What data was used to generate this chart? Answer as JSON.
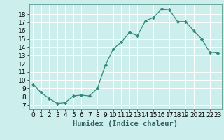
{
  "x": [
    0,
    1,
    2,
    3,
    4,
    5,
    6,
    7,
    8,
    9,
    10,
    11,
    12,
    13,
    14,
    15,
    16,
    17,
    18,
    19,
    20,
    21,
    22,
    23
  ],
  "y": [
    9.5,
    8.5,
    7.8,
    7.2,
    7.3,
    8.1,
    8.2,
    8.1,
    9.0,
    11.8,
    13.8,
    14.6,
    15.8,
    15.4,
    17.2,
    17.6,
    18.6,
    18.5,
    17.1,
    17.1,
    16.0,
    15.0,
    13.4,
    13.3
  ],
  "line_color": "#2e8b7a",
  "marker": "D",
  "marker_size": 2.2,
  "bg_color": "#cceeed",
  "grid_color": "#ffffff",
  "xlabel": "Humidex (Indice chaleur)",
  "xlim": [
    -0.5,
    23.5
  ],
  "ylim": [
    6.5,
    19.2
  ],
  "yticks": [
    7,
    8,
    9,
    10,
    11,
    12,
    13,
    14,
    15,
    16,
    17,
    18
  ],
  "xticks": [
    0,
    1,
    2,
    3,
    4,
    5,
    6,
    7,
    8,
    9,
    10,
    11,
    12,
    13,
    14,
    15,
    16,
    17,
    18,
    19,
    20,
    21,
    22,
    23
  ],
  "label_fontsize": 7.5,
  "tick_fontsize": 6.5
}
